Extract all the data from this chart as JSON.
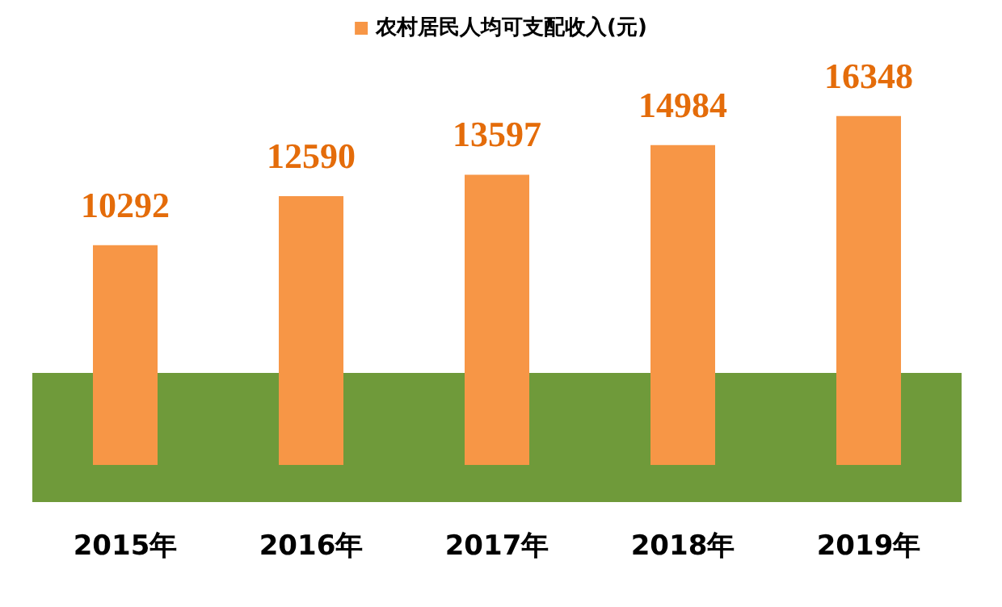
{
  "chart_data": {
    "type": "bar",
    "categories": [
      "2015年",
      "2016年",
      "2017年",
      "2018年",
      "2019年"
    ],
    "series": [
      {
        "name": "农村居民人均可支配收入(元)",
        "color": "#f79646",
        "values": [
          10292,
          12590,
          13597,
          14984,
          16348
        ]
      }
    ],
    "data_labels": true,
    "legend": "top"
  }
}
